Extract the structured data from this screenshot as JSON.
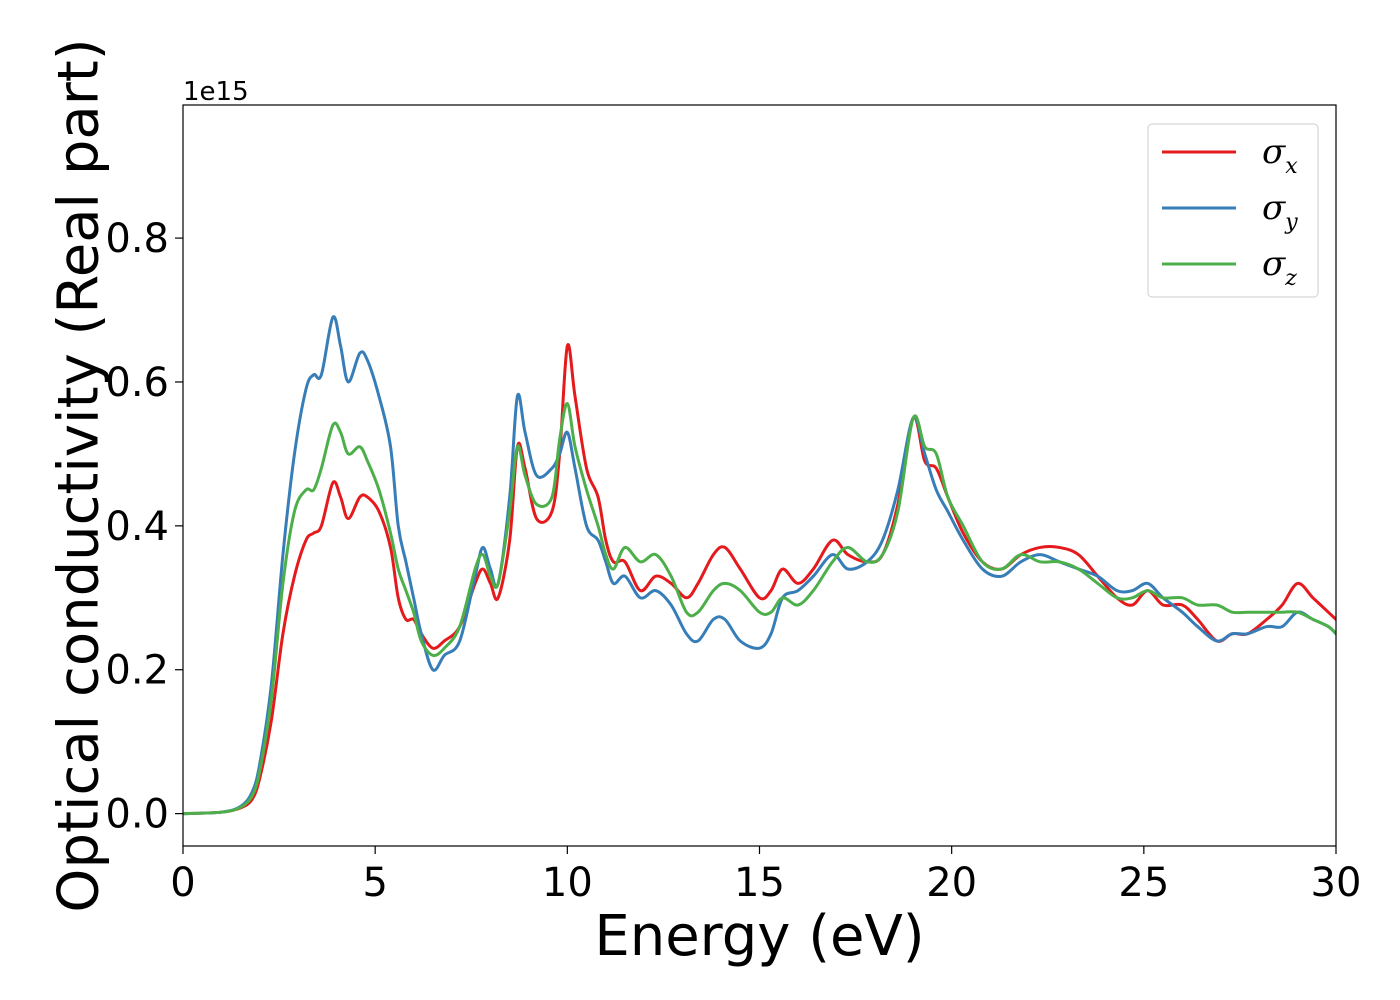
{
  "chart_data": {
    "type": "line",
    "title": "",
    "xlabel": "Energy (eV)",
    "ylabel": "Optical conductivity (Real part)",
    "y_offset_label": "1e15",
    "xlim": [
      0,
      30
    ],
    "ylim": [
      -0.045,
      0.985
    ],
    "xticks": [
      0,
      5,
      10,
      15,
      20,
      25,
      30
    ],
    "xtick_labels": [
      "0",
      "5",
      "10",
      "15",
      "20",
      "25",
      "30"
    ],
    "yticks": [
      0.0,
      0.2,
      0.4,
      0.6,
      0.8
    ],
    "ytick_labels": [
      "0.0",
      "0.2",
      "0.4",
      "0.6",
      "0.8"
    ],
    "grid": false,
    "legend_position": "top-right",
    "series": [
      {
        "name": "σx",
        "symbol": "σ",
        "subscript": "x",
        "color": "#e41a1c",
        "points": [
          [
            0,
            0
          ],
          [
            1,
            0.002
          ],
          [
            1.5,
            0.008
          ],
          [
            1.8,
            0.02
          ],
          [
            2.0,
            0.05
          ],
          [
            2.3,
            0.13
          ],
          [
            2.6,
            0.25
          ],
          [
            2.9,
            0.33
          ],
          [
            3.2,
            0.38
          ],
          [
            3.4,
            0.39
          ],
          [
            3.6,
            0.4
          ],
          [
            3.9,
            0.46
          ],
          [
            4.1,
            0.44
          ],
          [
            4.3,
            0.41
          ],
          [
            4.6,
            0.44
          ],
          [
            4.8,
            0.44
          ],
          [
            5.1,
            0.42
          ],
          [
            5.4,
            0.37
          ],
          [
            5.6,
            0.3
          ],
          [
            5.8,
            0.27
          ],
          [
            6.0,
            0.27
          ],
          [
            6.2,
            0.25
          ],
          [
            6.5,
            0.23
          ],
          [
            6.8,
            0.24
          ],
          [
            7.2,
            0.26
          ],
          [
            7.6,
            0.32
          ],
          [
            7.8,
            0.34
          ],
          [
            8.0,
            0.32
          ],
          [
            8.2,
            0.3
          ],
          [
            8.5,
            0.38
          ],
          [
            8.7,
            0.51
          ],
          [
            8.9,
            0.48
          ],
          [
            9.2,
            0.41
          ],
          [
            9.6,
            0.42
          ],
          [
            9.8,
            0.5
          ],
          [
            10.0,
            0.65
          ],
          [
            10.2,
            0.58
          ],
          [
            10.5,
            0.48
          ],
          [
            10.8,
            0.44
          ],
          [
            11.0,
            0.38
          ],
          [
            11.2,
            0.35
          ],
          [
            11.5,
            0.35
          ],
          [
            11.9,
            0.31
          ],
          [
            12.3,
            0.33
          ],
          [
            12.7,
            0.32
          ],
          [
            13.1,
            0.3
          ],
          [
            13.4,
            0.32
          ],
          [
            13.8,
            0.36
          ],
          [
            14.1,
            0.37
          ],
          [
            14.5,
            0.34
          ],
          [
            15.0,
            0.3
          ],
          [
            15.3,
            0.31
          ],
          [
            15.6,
            0.34
          ],
          [
            16.0,
            0.32
          ],
          [
            16.4,
            0.34
          ],
          [
            16.9,
            0.38
          ],
          [
            17.3,
            0.36
          ],
          [
            17.8,
            0.35
          ],
          [
            18.2,
            0.36
          ],
          [
            18.6,
            0.43
          ],
          [
            19.0,
            0.55
          ],
          [
            19.3,
            0.49
          ],
          [
            19.6,
            0.48
          ],
          [
            19.9,
            0.44
          ],
          [
            20.3,
            0.39
          ],
          [
            20.8,
            0.35
          ],
          [
            21.3,
            0.34
          ],
          [
            21.8,
            0.36
          ],
          [
            22.3,
            0.37
          ],
          [
            22.8,
            0.37
          ],
          [
            23.3,
            0.36
          ],
          [
            23.8,
            0.33
          ],
          [
            24.3,
            0.3
          ],
          [
            24.7,
            0.29
          ],
          [
            25.1,
            0.31
          ],
          [
            25.5,
            0.29
          ],
          [
            26.0,
            0.29
          ],
          [
            26.4,
            0.27
          ],
          [
            26.9,
            0.24
          ],
          [
            27.3,
            0.25
          ],
          [
            27.7,
            0.25
          ],
          [
            28.2,
            0.27
          ],
          [
            28.6,
            0.29
          ],
          [
            29.0,
            0.32
          ],
          [
            29.4,
            0.3
          ],
          [
            29.8,
            0.28
          ],
          [
            30.0,
            0.27
          ]
        ]
      },
      {
        "name": "σy",
        "symbol": "σ",
        "subscript": "y",
        "color": "#377eb8",
        "points": [
          [
            0,
            0
          ],
          [
            1,
            0.002
          ],
          [
            1.5,
            0.01
          ],
          [
            1.8,
            0.03
          ],
          [
            2.0,
            0.07
          ],
          [
            2.3,
            0.18
          ],
          [
            2.6,
            0.36
          ],
          [
            2.9,
            0.5
          ],
          [
            3.2,
            0.59
          ],
          [
            3.4,
            0.61
          ],
          [
            3.6,
            0.61
          ],
          [
            3.9,
            0.69
          ],
          [
            4.1,
            0.65
          ],
          [
            4.3,
            0.6
          ],
          [
            4.6,
            0.64
          ],
          [
            4.8,
            0.63
          ],
          [
            5.1,
            0.58
          ],
          [
            5.4,
            0.51
          ],
          [
            5.6,
            0.4
          ],
          [
            5.8,
            0.35
          ],
          [
            6.0,
            0.3
          ],
          [
            6.2,
            0.25
          ],
          [
            6.5,
            0.2
          ],
          [
            6.8,
            0.22
          ],
          [
            7.2,
            0.24
          ],
          [
            7.6,
            0.33
          ],
          [
            7.8,
            0.37
          ],
          [
            8.0,
            0.34
          ],
          [
            8.2,
            0.32
          ],
          [
            8.5,
            0.44
          ],
          [
            8.7,
            0.58
          ],
          [
            8.9,
            0.53
          ],
          [
            9.2,
            0.47
          ],
          [
            9.6,
            0.48
          ],
          [
            9.8,
            0.5
          ],
          [
            10.0,
            0.53
          ],
          [
            10.2,
            0.48
          ],
          [
            10.5,
            0.4
          ],
          [
            10.8,
            0.38
          ],
          [
            11.0,
            0.35
          ],
          [
            11.2,
            0.32
          ],
          [
            11.5,
            0.33
          ],
          [
            11.9,
            0.3
          ],
          [
            12.3,
            0.31
          ],
          [
            12.7,
            0.29
          ],
          [
            13.1,
            0.25
          ],
          [
            13.4,
            0.24
          ],
          [
            13.8,
            0.27
          ],
          [
            14.1,
            0.27
          ],
          [
            14.5,
            0.24
          ],
          [
            15.0,
            0.23
          ],
          [
            15.3,
            0.25
          ],
          [
            15.6,
            0.3
          ],
          [
            16.0,
            0.31
          ],
          [
            16.4,
            0.33
          ],
          [
            16.9,
            0.36
          ],
          [
            17.3,
            0.34
          ],
          [
            17.8,
            0.35
          ],
          [
            18.2,
            0.38
          ],
          [
            18.6,
            0.45
          ],
          [
            19.0,
            0.55
          ],
          [
            19.3,
            0.5
          ],
          [
            19.6,
            0.45
          ],
          [
            19.9,
            0.42
          ],
          [
            20.3,
            0.38
          ],
          [
            20.8,
            0.34
          ],
          [
            21.3,
            0.33
          ],
          [
            21.8,
            0.35
          ],
          [
            22.3,
            0.36
          ],
          [
            22.8,
            0.35
          ],
          [
            23.3,
            0.34
          ],
          [
            23.8,
            0.33
          ],
          [
            24.3,
            0.31
          ],
          [
            24.7,
            0.31
          ],
          [
            25.1,
            0.32
          ],
          [
            25.5,
            0.3
          ],
          [
            26.0,
            0.28
          ],
          [
            26.4,
            0.26
          ],
          [
            26.9,
            0.24
          ],
          [
            27.3,
            0.25
          ],
          [
            27.7,
            0.25
          ],
          [
            28.2,
            0.26
          ],
          [
            28.6,
            0.26
          ],
          [
            29.0,
            0.28
          ],
          [
            29.4,
            0.27
          ],
          [
            29.8,
            0.26
          ],
          [
            30.0,
            0.25
          ]
        ]
      },
      {
        "name": "σz",
        "symbol": "σ",
        "subscript": "z",
        "color": "#4daf4a",
        "points": [
          [
            0,
            0
          ],
          [
            1,
            0.002
          ],
          [
            1.5,
            0.009
          ],
          [
            1.8,
            0.025
          ],
          [
            2.0,
            0.06
          ],
          [
            2.3,
            0.16
          ],
          [
            2.6,
            0.32
          ],
          [
            2.9,
            0.42
          ],
          [
            3.2,
            0.45
          ],
          [
            3.4,
            0.45
          ],
          [
            3.6,
            0.48
          ],
          [
            3.9,
            0.54
          ],
          [
            4.1,
            0.53
          ],
          [
            4.3,
            0.5
          ],
          [
            4.6,
            0.51
          ],
          [
            4.8,
            0.49
          ],
          [
            5.1,
            0.45
          ],
          [
            5.4,
            0.39
          ],
          [
            5.6,
            0.34
          ],
          [
            5.8,
            0.31
          ],
          [
            6.0,
            0.28
          ],
          [
            6.2,
            0.24
          ],
          [
            6.5,
            0.22
          ],
          [
            6.8,
            0.23
          ],
          [
            7.2,
            0.26
          ],
          [
            7.6,
            0.34
          ],
          [
            7.8,
            0.36
          ],
          [
            8.0,
            0.33
          ],
          [
            8.2,
            0.32
          ],
          [
            8.5,
            0.42
          ],
          [
            8.7,
            0.51
          ],
          [
            8.9,
            0.47
          ],
          [
            9.2,
            0.43
          ],
          [
            9.6,
            0.44
          ],
          [
            9.8,
            0.52
          ],
          [
            10.0,
            0.57
          ],
          [
            10.2,
            0.51
          ],
          [
            10.5,
            0.45
          ],
          [
            10.8,
            0.4
          ],
          [
            11.0,
            0.36
          ],
          [
            11.2,
            0.34
          ],
          [
            11.5,
            0.37
          ],
          [
            11.9,
            0.35
          ],
          [
            12.3,
            0.36
          ],
          [
            12.7,
            0.33
          ],
          [
            13.1,
            0.28
          ],
          [
            13.4,
            0.28
          ],
          [
            13.8,
            0.31
          ],
          [
            14.1,
            0.32
          ],
          [
            14.5,
            0.31
          ],
          [
            15.0,
            0.28
          ],
          [
            15.3,
            0.28
          ],
          [
            15.6,
            0.3
          ],
          [
            16.0,
            0.29
          ],
          [
            16.4,
            0.31
          ],
          [
            16.9,
            0.35
          ],
          [
            17.3,
            0.37
          ],
          [
            17.8,
            0.35
          ],
          [
            18.2,
            0.36
          ],
          [
            18.6,
            0.42
          ],
          [
            19.0,
            0.55
          ],
          [
            19.3,
            0.51
          ],
          [
            19.6,
            0.5
          ],
          [
            19.9,
            0.44
          ],
          [
            20.3,
            0.4
          ],
          [
            20.8,
            0.35
          ],
          [
            21.3,
            0.34
          ],
          [
            21.8,
            0.36
          ],
          [
            22.3,
            0.35
          ],
          [
            22.8,
            0.35
          ],
          [
            23.3,
            0.34
          ],
          [
            23.8,
            0.32
          ],
          [
            24.3,
            0.3
          ],
          [
            24.7,
            0.3
          ],
          [
            25.1,
            0.31
          ],
          [
            25.5,
            0.3
          ],
          [
            26.0,
            0.3
          ],
          [
            26.4,
            0.29
          ],
          [
            26.9,
            0.29
          ],
          [
            27.3,
            0.28
          ],
          [
            27.7,
            0.28
          ],
          [
            28.2,
            0.28
          ],
          [
            28.6,
            0.28
          ],
          [
            29.0,
            0.28
          ],
          [
            29.4,
            0.27
          ],
          [
            29.8,
            0.26
          ],
          [
            30.0,
            0.25
          ]
        ]
      }
    ]
  }
}
